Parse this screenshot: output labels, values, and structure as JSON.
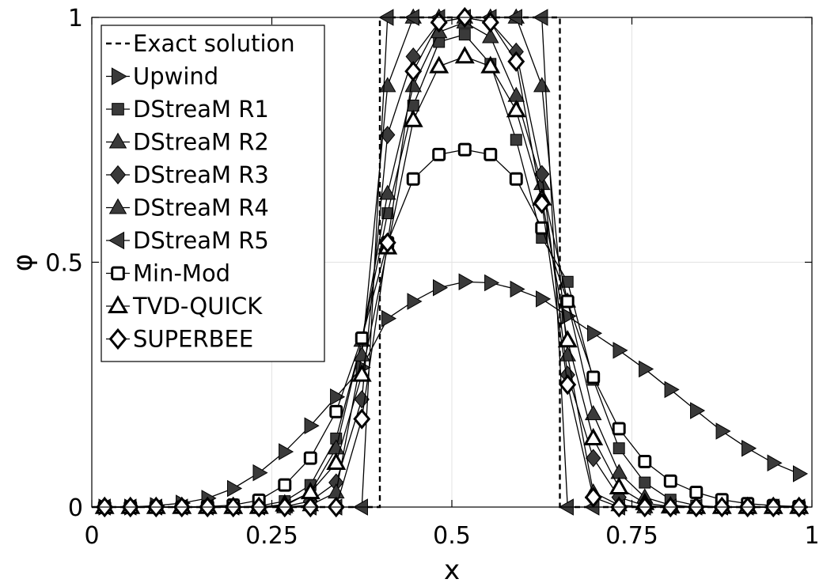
{
  "chart_data": {
    "type": "line",
    "xlabel": "x",
    "ylabel": "φ",
    "xlim": [
      0,
      1
    ],
    "ylim": [
      0,
      1
    ],
    "xticks": [
      0,
      0.25,
      0.5,
      0.75,
      1
    ],
    "xtick_labels": [
      "0",
      "0.25",
      "0.5",
      "0.75",
      "1"
    ],
    "yticks": [
      0,
      0.5,
      1
    ],
    "ytick_labels": [
      "0",
      "0.5",
      "1"
    ],
    "grid": true,
    "legend_position": "top-left",
    "exact": {
      "name": "Exact solution",
      "x": [
        0.0,
        0.4,
        0.4,
        0.65,
        0.65,
        1.0
      ],
      "y": [
        0,
        0,
        1,
        1,
        0,
        0
      ]
    },
    "series": [
      {
        "name": "Upwind",
        "marker": "triangle-right",
        "fill": "#3a3a3a",
        "x": [
          0.0178,
          0.0536,
          0.0893,
          0.125,
          0.1607,
          0.1964,
          0.2321,
          0.2679,
          0.3036,
          0.3393,
          0.375,
          0.4107,
          0.4464,
          0.4821,
          0.5179,
          0.5536,
          0.5893,
          0.625,
          0.6607,
          0.6964,
          0.7321,
          0.7679,
          0.8036,
          0.8393,
          0.875,
          0.9107,
          0.9464,
          0.9821
        ],
        "y": [
          0.0,
          0.0,
          0.003,
          0.008,
          0.018,
          0.038,
          0.07,
          0.113,
          0.166,
          0.225,
          0.285,
          0.385,
          0.42,
          0.448,
          0.46,
          0.458,
          0.445,
          0.425,
          0.39,
          0.355,
          0.32,
          0.282,
          0.24,
          0.197,
          0.155,
          0.12,
          0.09,
          0.068
        ]
      },
      {
        "name": "DStreaM R1",
        "marker": "square",
        "fill": "#3a3a3a",
        "x": [
          0.0178,
          0.0536,
          0.0893,
          0.125,
          0.1607,
          0.1964,
          0.2321,
          0.2679,
          0.3036,
          0.3393,
          0.375,
          0.4107,
          0.4464,
          0.4821,
          0.5179,
          0.5536,
          0.5893,
          0.625,
          0.6607,
          0.6964,
          0.7321,
          0.7679,
          0.8036,
          0.8393,
          0.875,
          0.9107,
          0.9464,
          0.9821
        ],
        "y": [
          0,
          0,
          0,
          0,
          0,
          0,
          0.002,
          0.012,
          0.045,
          0.14,
          0.34,
          0.6,
          0.82,
          0.95,
          0.965,
          0.905,
          0.75,
          0.55,
          0.46,
          0.26,
          0.12,
          0.05,
          0.015,
          0.003,
          0,
          0,
          0,
          0
        ]
      },
      {
        "name": "DStreaM R2",
        "marker": "triangle-up",
        "fill": "#3a3a3a",
        "x": [
          0.0178,
          0.0536,
          0.0893,
          0.125,
          0.1607,
          0.1964,
          0.2321,
          0.2679,
          0.3036,
          0.3393,
          0.375,
          0.4107,
          0.4464,
          0.4821,
          0.5179,
          0.5536,
          0.5893,
          0.625,
          0.6607,
          0.6964,
          0.7321,
          0.7679,
          0.8036,
          0.8393,
          0.875,
          0.9107,
          0.9464,
          0.9821
        ],
        "y": [
          0,
          0,
          0,
          0,
          0,
          0,
          0,
          0.003,
          0.03,
          0.12,
          0.34,
          0.64,
          0.86,
          0.97,
          0.99,
          0.96,
          0.84,
          0.66,
          0.42,
          0.19,
          0.07,
          0.02,
          0.004,
          0,
          0,
          0,
          0,
          0
        ]
      },
      {
        "name": "DStreaM R3",
        "marker": "diamond",
        "fill": "#3a3a3a",
        "x": [
          0.0178,
          0.0536,
          0.0893,
          0.125,
          0.1607,
          0.1964,
          0.2321,
          0.2679,
          0.3036,
          0.3393,
          0.375,
          0.4107,
          0.4464,
          0.4821,
          0.5179,
          0.5536,
          0.5893,
          0.625,
          0.6607,
          0.6964,
          0.7321,
          0.7679,
          0.8036,
          0.8393,
          0.875,
          0.9107,
          0.9464,
          0.9821
        ],
        "y": [
          0,
          0,
          0,
          0,
          0,
          0,
          0,
          0.001,
          0.012,
          0.05,
          0.22,
          0.76,
          0.92,
          0.99,
          1.0,
          0.99,
          0.93,
          0.68,
          0.27,
          0.1,
          0.02,
          0.003,
          0,
          0,
          0,
          0,
          0,
          0
        ]
      },
      {
        "name": "DStreaM R4",
        "marker": "triangle-up",
        "fill": "#3a3a3a",
        "x": [
          0.0178,
          0.0536,
          0.0893,
          0.125,
          0.1607,
          0.1964,
          0.2321,
          0.2679,
          0.3036,
          0.3393,
          0.375,
          0.4107,
          0.4464,
          0.4821,
          0.5179,
          0.5536,
          0.5893,
          0.625,
          0.6607,
          0.6964,
          0.7321,
          0.7679,
          0.8036,
          0.8393,
          0.875,
          0.9107,
          0.9464,
          0.9821
        ],
        "y": [
          0,
          0,
          0,
          0,
          0,
          0,
          0,
          0,
          0.004,
          0.03,
          0.31,
          0.86,
          1.0,
          1.0,
          1.0,
          1.0,
          1.0,
          0.86,
          0.31,
          0.03,
          0.004,
          0,
          0,
          0,
          0,
          0,
          0,
          0
        ]
      },
      {
        "name": "DStreaM R5",
        "marker": "triangle-left",
        "fill": "#3a3a3a",
        "x": [
          0.0178,
          0.0536,
          0.0893,
          0.125,
          0.1607,
          0.1964,
          0.2321,
          0.2679,
          0.3036,
          0.3393,
          0.375,
          0.4107,
          0.4464,
          0.4821,
          0.5179,
          0.5536,
          0.5893,
          0.625,
          0.6607,
          0.6964,
          0.7321,
          0.7679,
          0.8036,
          0.8393,
          0.875,
          0.9107,
          0.9464,
          0.9821
        ],
        "y": [
          0,
          0,
          0,
          0,
          0,
          0,
          0,
          0,
          0,
          0,
          0,
          1.0,
          1.0,
          1.0,
          1.0,
          1.0,
          1.0,
          1.0,
          0,
          0,
          0,
          0,
          0,
          0,
          0,
          0,
          0,
          0
        ]
      },
      {
        "name": "Min-Mod",
        "marker": "square",
        "fill": "#ffffff",
        "x": [
          0.0178,
          0.0536,
          0.0893,
          0.125,
          0.1607,
          0.1964,
          0.2321,
          0.2679,
          0.3036,
          0.3393,
          0.375,
          0.4107,
          0.4464,
          0.4821,
          0.5179,
          0.5536,
          0.5893,
          0.625,
          0.6607,
          0.6964,
          0.7321,
          0.7679,
          0.8036,
          0.8393,
          0.875,
          0.9107,
          0.9464,
          0.9821
        ],
        "y": [
          0,
          0,
          0,
          0,
          0.001,
          0.004,
          0.014,
          0.045,
          0.1,
          0.195,
          0.345,
          0.54,
          0.67,
          0.72,
          0.73,
          0.72,
          0.67,
          0.57,
          0.42,
          0.265,
          0.16,
          0.093,
          0.053,
          0.03,
          0.015,
          0.007,
          0.003,
          0.001
        ]
      },
      {
        "name": "TVD-QUICK",
        "marker": "triangle-up",
        "fill": "#ffffff",
        "x": [
          0.0178,
          0.0536,
          0.0893,
          0.125,
          0.1607,
          0.1964,
          0.2321,
          0.2679,
          0.3036,
          0.3393,
          0.375,
          0.4107,
          0.4464,
          0.4821,
          0.5179,
          0.5536,
          0.5893,
          0.625,
          0.6607,
          0.6964,
          0.7321,
          0.7679,
          0.8036,
          0.8393,
          0.875,
          0.9107,
          0.9464,
          0.9821
        ],
        "y": [
          0,
          0,
          0,
          0,
          0,
          0,
          0,
          0.005,
          0.03,
          0.09,
          0.27,
          0.53,
          0.79,
          0.9,
          0.92,
          0.9,
          0.81,
          0.63,
          0.34,
          0.14,
          0.04,
          0.008,
          0.001,
          0,
          0,
          0,
          0,
          0
        ]
      },
      {
        "name": "SUPERBEE",
        "marker": "diamond",
        "fill": "#ffffff",
        "x": [
          0.0178,
          0.0536,
          0.0893,
          0.125,
          0.1607,
          0.1964,
          0.2321,
          0.2679,
          0.3036,
          0.3393,
          0.375,
          0.4107,
          0.4464,
          0.4821,
          0.5179,
          0.5536,
          0.5893,
          0.625,
          0.6607,
          0.6964,
          0.7321,
          0.7679,
          0.8036,
          0.8393,
          0.875,
          0.9107,
          0.9464,
          0.9821
        ],
        "y": [
          0,
          0,
          0,
          0,
          0,
          0,
          0,
          0,
          0,
          0,
          0.18,
          0.54,
          0.89,
          0.99,
          1.0,
          0.99,
          0.91,
          0.62,
          0.25,
          0.02,
          0,
          0,
          0,
          0,
          0,
          0,
          0,
          0
        ]
      }
    ]
  }
}
